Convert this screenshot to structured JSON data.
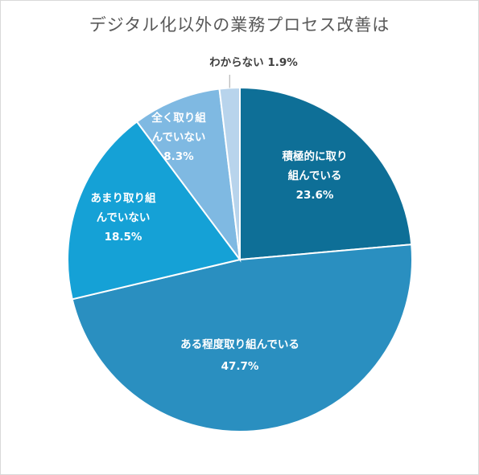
{
  "chart_data": {
    "type": "pie",
    "title": "デジタル化以外の業務プロセス改善は",
    "slices": [
      {
        "label": "積極的に取り組んでいる",
        "value": 23.6,
        "value_label": "23.6%",
        "label_lines": [
          "積極的に取り",
          "組んでいる"
        ],
        "color": "#0e6f97",
        "label_color": "light"
      },
      {
        "label": "ある程度取り組んでいる",
        "value": 47.7,
        "value_label": "47.7%",
        "label_lines": [
          "ある程度取り組んでいる"
        ],
        "color": "#2a8fc0",
        "label_color": "light"
      },
      {
        "label": "あまり取り組んでいない",
        "value": 18.5,
        "value_label": "18.5%",
        "label_lines": [
          "あまり取り組",
          "んでいない"
        ],
        "color": "#15a1d6",
        "label_color": "light"
      },
      {
        "label": "全く取り組んでいない",
        "value": 8.3,
        "value_label": "8.3%",
        "label_lines": [
          "全く取り組",
          "んでいない"
        ],
        "color": "#7fb9e2",
        "label_color": "light"
      },
      {
        "label": "わからない",
        "value": 1.9,
        "value_label": "1.9%",
        "label_lines": [
          "わからない 1.9%"
        ],
        "color": "#b8d4ec",
        "label_color": "dark",
        "outside": true
      }
    ],
    "start": "12 o'clock",
    "direction": "clockwise",
    "legend": "none"
  }
}
